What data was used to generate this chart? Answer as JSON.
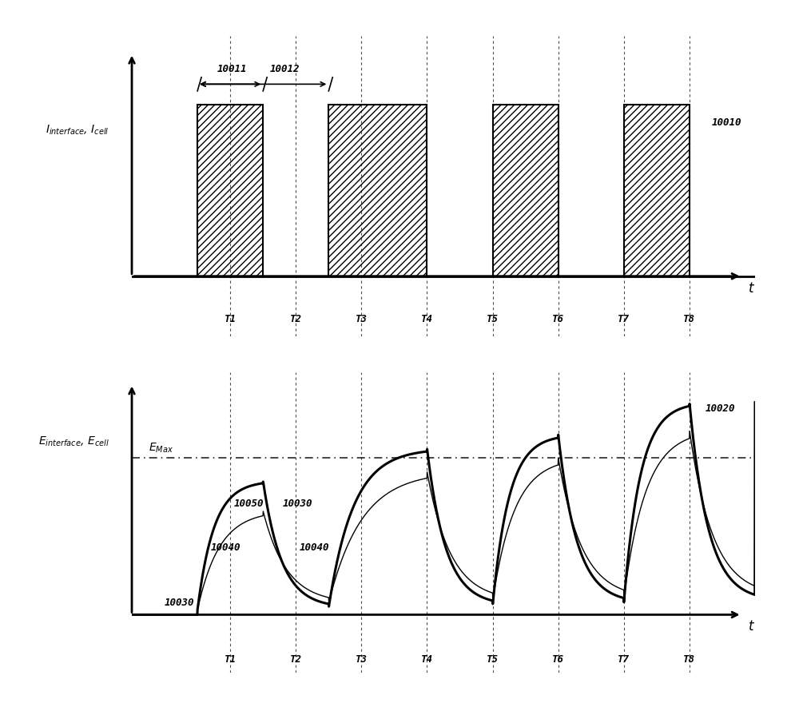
{
  "background_color": "#ffffff",
  "T_labels": [
    "T1",
    "T2",
    "T3",
    "T4",
    "T5",
    "T6",
    "T7",
    "T8"
  ],
  "T_positions": [
    1.5,
    2.5,
    3.5,
    4.5,
    5.5,
    6.5,
    7.5,
    8.5
  ],
  "top_label_10010": "10010",
  "top_label_10011": "10011",
  "top_label_10012": "10012",
  "bottom_label_10020": "10020",
  "label_10030": "10030",
  "label_10040": "10040",
  "label_10050": "10050",
  "label_10030b": "10030",
  "label_10040b": "10040",
  "ylabel_top": "I_{interface}, I_{cell}",
  "ylabel_bottom": "E_{interface}, E_{cell}",
  "xlabel": "t",
  "E_Max_label": "E_{Max}",
  "pulse_on_intervals": [
    [
      1.0,
      2.0
    ],
    [
      3.0,
      4.5
    ],
    [
      5.5,
      6.5
    ],
    [
      7.5,
      8.5
    ]
  ],
  "line_color": "#000000",
  "dashed_color": "#555555"
}
